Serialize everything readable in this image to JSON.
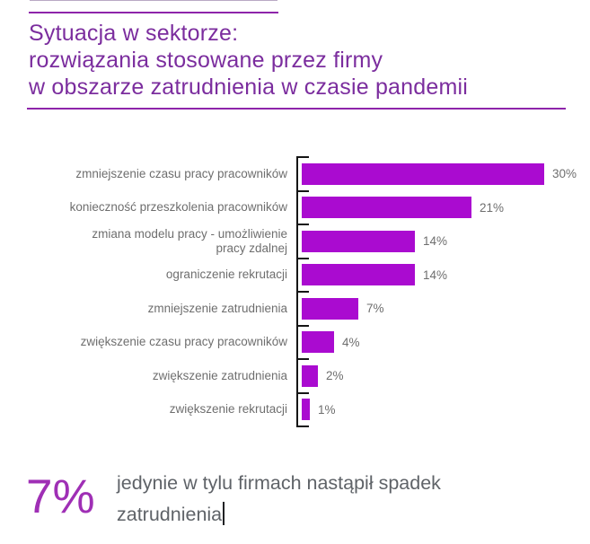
{
  "header": {
    "title_lines": [
      "Sytuacja w sektorze:",
      "rozwiązania stosowane przez firmy",
      "w obszarze zatrudnienia w czasie pandemii"
    ]
  },
  "chart_data": {
    "type": "bar",
    "orientation": "horizontal",
    "title": "",
    "xlabel": "",
    "ylabel": "",
    "xlim": [
      0,
      30
    ],
    "grid": false,
    "legend": false,
    "categories": [
      "zmniejszenie czasu pracy pracowników",
      "konieczność przeszkolenia pracowników",
      "zmiana modelu pracy - umożliwienie\npracy zdalnej",
      "ograniczenie rekrutacji",
      "zmniejszenie zatrudnienia",
      "zwiększenie czasu pracy pracowników",
      "zwiększenie zatrudnienia",
      "zwiększenie rekrutacji"
    ],
    "values": [
      30,
      21,
      14,
      14,
      7,
      4,
      2,
      1
    ],
    "value_labels": [
      "30%",
      "21%",
      "14%",
      "14%",
      "7%",
      "4%",
      "2%",
      "1%"
    ],
    "bar_color": "#AA0BD0",
    "axis_color": "#151515",
    "label_color": "#6E6E6E"
  },
  "footer": {
    "stat_value": "7%",
    "stat_text": "jedynie w tylu firmach nastąpił spadek\nzatrudnienia"
  },
  "colors": {
    "title_text": "#7B2D9E",
    "rule": "#8E24AA",
    "bar": "#AA0BD0",
    "stat_value": "#9F2FB5",
    "body_text": "#5F6368",
    "chart_label": "#6E6E6E"
  }
}
